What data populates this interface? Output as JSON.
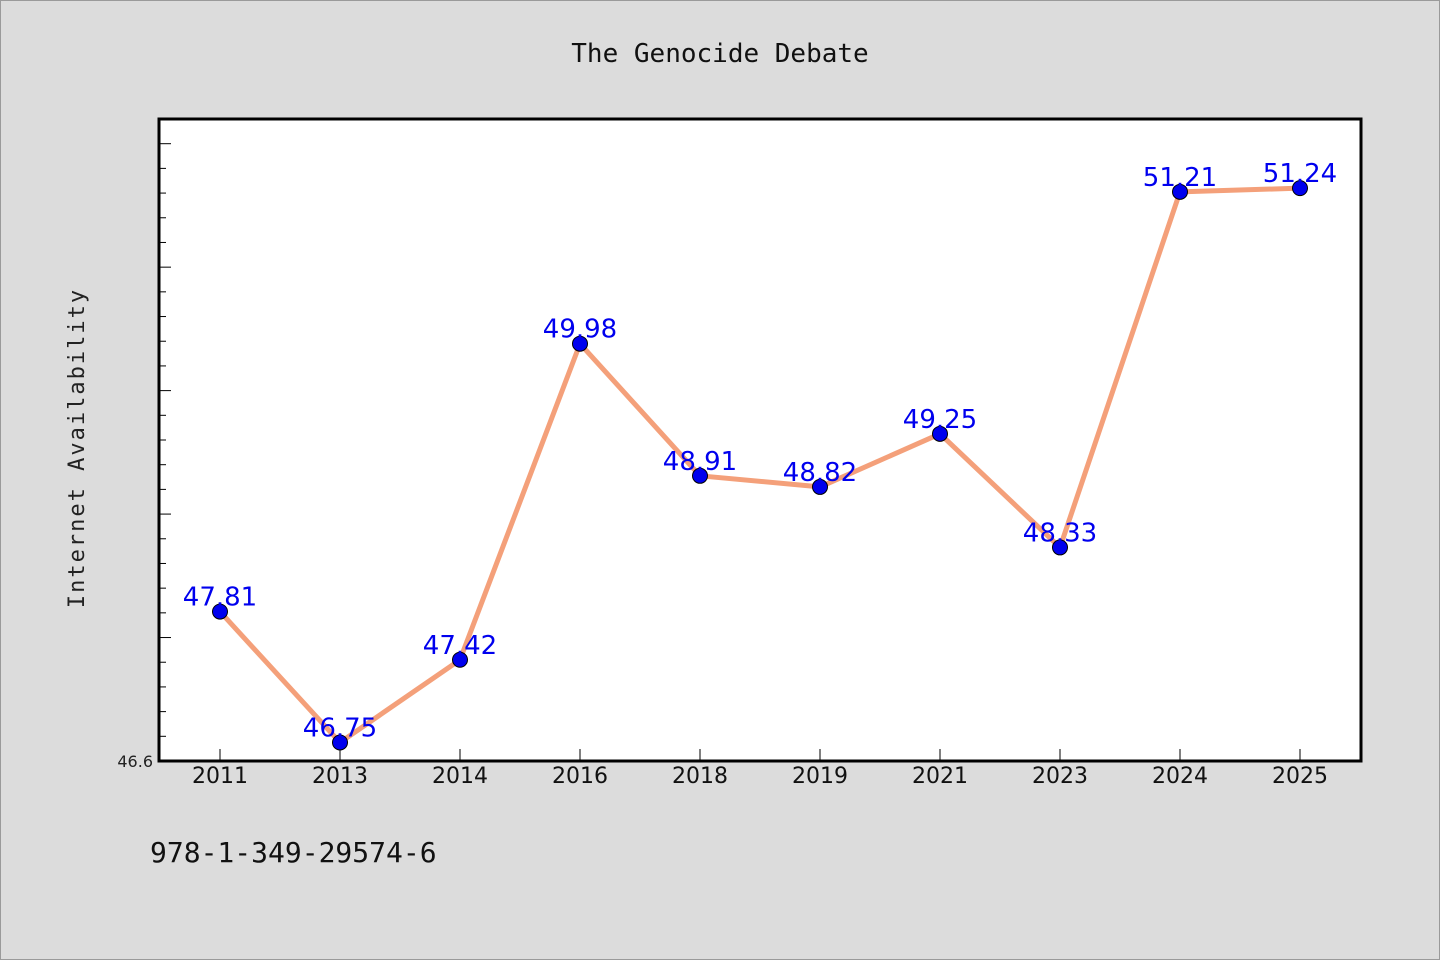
{
  "chart_data": {
    "type": "line",
    "title": "The Genocide Debate",
    "xlabel": "",
    "ylabel": "Internet Availability",
    "categories": [
      "2011",
      "2013",
      "2014",
      "2016",
      "2018",
      "2019",
      "2021",
      "2023",
      "2024",
      "2025"
    ],
    "series": [
      {
        "values": [
          47.81,
          46.75,
          47.42,
          49.98,
          48.91,
          48.82,
          49.25,
          48.33,
          51.21,
          51.24
        ],
        "value_labels": [
          "47.81",
          "46.75",
          "47.42",
          "49.98",
          "48.91",
          "48.82",
          "49.25",
          "48.33",
          "51.21",
          "51.24"
        ]
      }
    ],
    "ylim": [
      46.6,
      51.8
    ],
    "y_tick_labels": [
      {
        "value": 46.6,
        "label": "46.6"
      }
    ],
    "y_minor_tick_step": 0.2,
    "grid": false,
    "line_color": "#f4a07a",
    "marker_color": "#0000ee",
    "label_color": "#0000ee",
    "background_color": "#dcdcdc",
    "plot_background_color": "#ffffff"
  },
  "footer": {
    "isbn": "978-1-349-29574-6"
  }
}
